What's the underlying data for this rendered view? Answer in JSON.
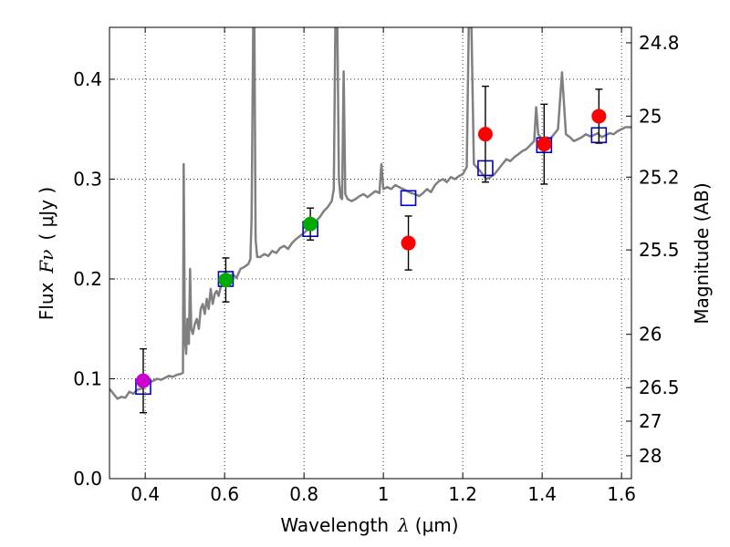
{
  "chart_data": {
    "type": "scatter",
    "xlabel_text": "Wavelength",
    "xlabel_symbol": "λ",
    "xlabel_unit": "(μm)",
    "ylabel_text": "Flux",
    "ylabel_symbol": "Fν",
    "ylabel_unit": "( μJy )",
    "y2label": "Magnitude (AB)",
    "xlim": [
      0.31,
      1.625
    ],
    "ylim": [
      0.0,
      0.452
    ],
    "grid": true,
    "xticks": [
      0.4,
      0.6,
      0.8,
      1.0,
      1.2,
      1.4,
      1.6
    ],
    "xtick_labels": [
      "0.4",
      "0.6",
      "0.8",
      "1",
      "1.2",
      "1.4",
      "1.6"
    ],
    "yticks": [
      0.0,
      0.1,
      0.2,
      0.3,
      0.4
    ],
    "ytick_labels": [
      "0.0",
      "0.1",
      "0.2",
      "0.3",
      "0.4"
    ],
    "mag_ticks": [
      {
        "label": "24.8",
        "mag": 24.8
      },
      {
        "label": "25",
        "mag": 25.0
      },
      {
        "label": "25.2",
        "mag": 25.2
      },
      {
        "label": "25.5",
        "mag": 25.5
      },
      {
        "label": "26",
        "mag": 26.0
      },
      {
        "label": "26.5",
        "mag": 26.5
      },
      {
        "label": "27",
        "mag": 27.0
      },
      {
        "label": "28",
        "mag": 28.0
      }
    ],
    "colors": {
      "spectrum": "#808080",
      "model": "#0000cc",
      "errorbar": "#000000",
      "axis": "#000000",
      "grid": "#000000"
    },
    "spectrum": [
      [
        0.31,
        0.09
      ],
      [
        0.32,
        0.085
      ],
      [
        0.33,
        0.08
      ],
      [
        0.34,
        0.082
      ],
      [
        0.35,
        0.081
      ],
      [
        0.36,
        0.087
      ],
      [
        0.37,
        0.085
      ],
      [
        0.38,
        0.089
      ],
      [
        0.39,
        0.09
      ],
      [
        0.4,
        0.094
      ],
      [
        0.41,
        0.096
      ],
      [
        0.42,
        0.098
      ],
      [
        0.43,
        0.1
      ],
      [
        0.44,
        0.099
      ],
      [
        0.45,
        0.101
      ],
      [
        0.46,
        0.103
      ],
      [
        0.47,
        0.102
      ],
      [
        0.48,
        0.104
      ],
      [
        0.49,
        0.105
      ],
      [
        0.495,
        0.106
      ],
      [
        0.497,
        0.315
      ],
      [
        0.5,
        0.14
      ],
      [
        0.503,
        0.125
      ],
      [
        0.506,
        0.16
      ],
      [
        0.51,
        0.135
      ],
      [
        0.513,
        0.21
      ],
      [
        0.516,
        0.15
      ],
      [
        0.52,
        0.145
      ],
      [
        0.525,
        0.155
      ],
      [
        0.53,
        0.16
      ],
      [
        0.535,
        0.15
      ],
      [
        0.54,
        0.17
      ],
      [
        0.545,
        0.175
      ],
      [
        0.55,
        0.165
      ],
      [
        0.555,
        0.18
      ],
      [
        0.56,
        0.17
      ],
      [
        0.565,
        0.19
      ],
      [
        0.57,
        0.175
      ],
      [
        0.575,
        0.185
      ],
      [
        0.58,
        0.188
      ],
      [
        0.585,
        0.183
      ],
      [
        0.59,
        0.192
      ],
      [
        0.6,
        0.196
      ],
      [
        0.61,
        0.2
      ],
      [
        0.62,
        0.205
      ],
      [
        0.63,
        0.201
      ],
      [
        0.64,
        0.21
      ],
      [
        0.65,
        0.212
      ],
      [
        0.66,
        0.215
      ],
      [
        0.665,
        0.22
      ],
      [
        0.668,
        0.26
      ],
      [
        0.672,
        0.452
      ],
      [
        0.675,
        0.452
      ],
      [
        0.678,
        0.24
      ],
      [
        0.682,
        0.222
      ],
      [
        0.69,
        0.222
      ],
      [
        0.7,
        0.225
      ],
      [
        0.71,
        0.223
      ],
      [
        0.72,
        0.228
      ],
      [
        0.73,
        0.226
      ],
      [
        0.74,
        0.231
      ],
      [
        0.75,
        0.233
      ],
      [
        0.76,
        0.23
      ],
      [
        0.77,
        0.236
      ],
      [
        0.78,
        0.24
      ],
      [
        0.79,
        0.243
      ],
      [
        0.8,
        0.246
      ],
      [
        0.81,
        0.25
      ],
      [
        0.82,
        0.255
      ],
      [
        0.83,
        0.258
      ],
      [
        0.84,
        0.262
      ],
      [
        0.85,
        0.268
      ],
      [
        0.86,
        0.272
      ],
      [
        0.87,
        0.278
      ],
      [
        0.875,
        0.29
      ],
      [
        0.879,
        0.452
      ],
      [
        0.884,
        0.452
      ],
      [
        0.888,
        0.3
      ],
      [
        0.892,
        0.282
      ],
      [
        0.896,
        0.28
      ],
      [
        0.9,
        0.408
      ],
      [
        0.904,
        0.285
      ],
      [
        0.91,
        0.28
      ],
      [
        0.92,
        0.278
      ],
      [
        0.93,
        0.28
      ],
      [
        0.94,
        0.283
      ],
      [
        0.95,
        0.285
      ],
      [
        0.96,
        0.282
      ],
      [
        0.97,
        0.285
      ],
      [
        0.98,
        0.288
      ],
      [
        0.99,
        0.286
      ],
      [
        0.995,
        0.315
      ],
      [
        1.0,
        0.29
      ],
      [
        1.01,
        0.292
      ],
      [
        1.02,
        0.29
      ],
      [
        1.03,
        0.294
      ],
      [
        1.04,
        0.292
      ],
      [
        1.05,
        0.29
      ],
      [
        1.06,
        0.288
      ],
      [
        1.07,
        0.286
      ],
      [
        1.08,
        0.285
      ],
      [
        1.09,
        0.283
      ],
      [
        1.1,
        0.286
      ],
      [
        1.11,
        0.29
      ],
      [
        1.12,
        0.287
      ],
      [
        1.13,
        0.294
      ],
      [
        1.14,
        0.298
      ],
      [
        1.15,
        0.3
      ],
      [
        1.16,
        0.297
      ],
      [
        1.17,
        0.302
      ],
      [
        1.18,
        0.3
      ],
      [
        1.19,
        0.303
      ],
      [
        1.2,
        0.305
      ],
      [
        1.21,
        0.312
      ],
      [
        1.215,
        0.452
      ],
      [
        1.222,
        0.452
      ],
      [
        1.228,
        0.315
      ],
      [
        1.24,
        0.31
      ],
      [
        1.25,
        0.305
      ],
      [
        1.26,
        0.3
      ],
      [
        1.27,
        0.302
      ],
      [
        1.28,
        0.305
      ],
      [
        1.29,
        0.31
      ],
      [
        1.3,
        0.315
      ],
      [
        1.31,
        0.32
      ],
      [
        1.32,
        0.318
      ],
      [
        1.33,
        0.322
      ],
      [
        1.34,
        0.325
      ],
      [
        1.35,
        0.328
      ],
      [
        1.36,
        0.33
      ],
      [
        1.37,
        0.334
      ],
      [
        1.38,
        0.338
      ],
      [
        1.385,
        0.372
      ],
      [
        1.39,
        0.345
      ],
      [
        1.4,
        0.34
      ],
      [
        1.41,
        0.342
      ],
      [
        1.42,
        0.34
      ],
      [
        1.43,
        0.345
      ],
      [
        1.44,
        0.35
      ],
      [
        1.45,
        0.407
      ],
      [
        1.46,
        0.345
      ],
      [
        1.47,
        0.342
      ],
      [
        1.48,
        0.338
      ],
      [
        1.49,
        0.34
      ],
      [
        1.5,
        0.342
      ],
      [
        1.51,
        0.345
      ],
      [
        1.52,
        0.343
      ],
      [
        1.53,
        0.344
      ],
      [
        1.54,
        0.346
      ],
      [
        1.55,
        0.342
      ],
      [
        1.56,
        0.344
      ],
      [
        1.57,
        0.346
      ],
      [
        1.58,
        0.345
      ],
      [
        1.59,
        0.348
      ],
      [
        1.6,
        0.35
      ],
      [
        1.61,
        0.352
      ],
      [
        1.625,
        0.352
      ]
    ],
    "observed": [
      {
        "x": 0.395,
        "y": 0.098,
        "err": 0.032,
        "color": "#cc00cc"
      },
      {
        "x": 0.603,
        "y": 0.199,
        "err": 0.022,
        "color": "#00aa00"
      },
      {
        "x": 0.816,
        "y": 0.255,
        "err": 0.016,
        "color": "#00aa00"
      },
      {
        "x": 1.063,
        "y": 0.236,
        "err": 0.027,
        "color": "#ff0000"
      },
      {
        "x": 1.257,
        "y": 0.345,
        "err": 0.048,
        "color": "#ff0000"
      },
      {
        "x": 1.405,
        "y": 0.335,
        "err": 0.04,
        "color": "#ff0000"
      },
      {
        "x": 1.543,
        "y": 0.363,
        "err": 0.027,
        "color": "#ff0000"
      }
    ],
    "model_points": [
      {
        "x": 0.395,
        "y": 0.092
      },
      {
        "x": 0.603,
        "y": 0.2
      },
      {
        "x": 0.816,
        "y": 0.25
      },
      {
        "x": 1.063,
        "y": 0.281
      },
      {
        "x": 1.257,
        "y": 0.311
      },
      {
        "x": 1.405,
        "y": 0.334
      },
      {
        "x": 1.543,
        "y": 0.344
      }
    ]
  }
}
